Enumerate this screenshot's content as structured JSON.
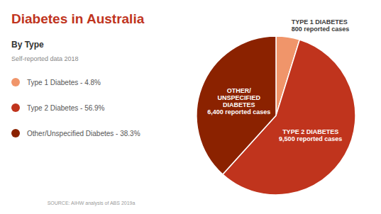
{
  "chart_data": {
    "type": "pie",
    "title": "Diabetes in Australia",
    "subtitle": [
      "By Type",
      "Self-reported data 2018"
    ],
    "categories": [
      "Type 1 Diabetes - 4.8%",
      "Type 2 Diabetes - 56.9%",
      "Other/Unspecified Diabetes - 38.3%"
    ],
    "values": [
      4.8,
      56.9,
      38.3
    ],
    "colors": [
      "#F0956A",
      "#C0341D",
      "#8B2200"
    ],
    "legend": "left",
    "annotations": [
      "TYPE 1 DIABETES\n800 reported cases",
      "TYPE 2 DIABETES\n9,500 reported cases",
      "OTHER/\nUNSPECIFIED\nDIABETES\n6,400 reported cases",
      "SOURCE: AIHW analysis of ABS 2019a"
    ]
  }
}
